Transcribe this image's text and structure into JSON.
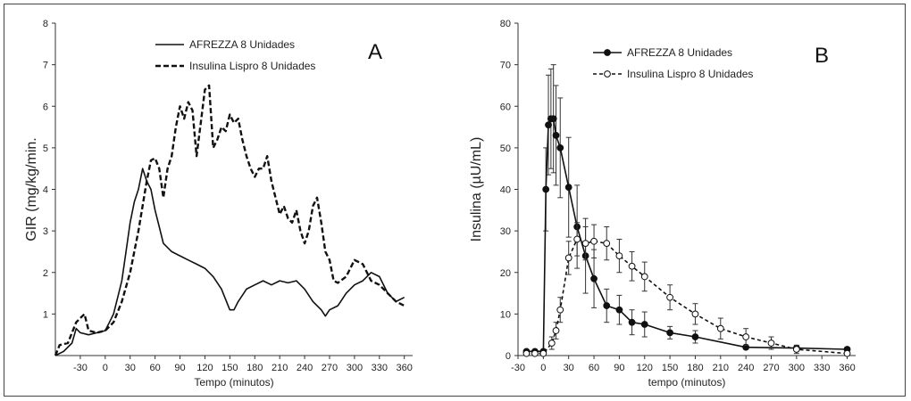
{
  "chart_data": [
    {
      "type": "line",
      "panel_label": "A",
      "xlabel": "Tempo (minutos)",
      "ylabel": "GIR (mg/kg/min.",
      "xlim": [
        -60,
        370
      ],
      "ylim": [
        0,
        8
      ],
      "x_ticks": [
        -30,
        0,
        30,
        60,
        90,
        120,
        150,
        180,
        210,
        240,
        270,
        300,
        330,
        360
      ],
      "y_ticks": [
        1,
        2,
        3,
        4,
        5,
        6,
        7,
        8
      ],
      "legend": "top-right",
      "series": [
        {
          "name": "AFREZZA 8 Unidades",
          "style": "solid",
          "x": [
            -60,
            -50,
            -40,
            -35,
            -30,
            -20,
            -10,
            0,
            5,
            10,
            15,
            20,
            25,
            30,
            35,
            40,
            45,
            50,
            55,
            60,
            65,
            70,
            75,
            80,
            90,
            100,
            110,
            120,
            130,
            140,
            150,
            155,
            160,
            170,
            180,
            190,
            200,
            210,
            220,
            230,
            240,
            250,
            260,
            265,
            270,
            280,
            290,
            300,
            310,
            320,
            330,
            340,
            350,
            360
          ],
          "y": [
            0,
            0.1,
            0.3,
            0.65,
            0.55,
            0.5,
            0.55,
            0.6,
            0.8,
            1.0,
            1.4,
            1.8,
            2.5,
            3.2,
            3.7,
            4.0,
            4.5,
            4.2,
            4.0,
            3.5,
            3.1,
            2.7,
            2.6,
            2.5,
            2.4,
            2.3,
            2.2,
            2.1,
            1.9,
            1.6,
            1.1,
            1.1,
            1.3,
            1.6,
            1.7,
            1.8,
            1.7,
            1.8,
            1.75,
            1.8,
            1.6,
            1.3,
            1.1,
            0.95,
            1.1,
            1.2,
            1.5,
            1.7,
            1.8,
            2.0,
            1.9,
            1.5,
            1.3,
            1.4
          ]
        },
        {
          "name": "Insulina Lispro 8 Unidades",
          "style": "dashed",
          "x": [
            -60,
            -55,
            -45,
            -35,
            -30,
            -25,
            -20,
            -10,
            0,
            10,
            20,
            30,
            40,
            50,
            55,
            60,
            65,
            70,
            75,
            80,
            85,
            90,
            95,
            100,
            105,
            110,
            115,
            120,
            125,
            130,
            135,
            140,
            145,
            150,
            155,
            160,
            165,
            170,
            175,
            180,
            185,
            190,
            195,
            200,
            205,
            210,
            215,
            220,
            225,
            230,
            235,
            240,
            245,
            250,
            255,
            260,
            265,
            270,
            275,
            280,
            290,
            300,
            310,
            320,
            330,
            340,
            350,
            360
          ],
          "y": [
            0,
            0.25,
            0.3,
            0.8,
            0.9,
            1.0,
            0.6,
            0.55,
            0.6,
            0.8,
            1.3,
            2.0,
            3.0,
            4.2,
            4.7,
            4.75,
            4.5,
            3.8,
            4.5,
            4.8,
            5.5,
            6.0,
            5.7,
            6.1,
            5.9,
            4.8,
            5.6,
            6.4,
            6.5,
            5.0,
            5.2,
            5.5,
            5.4,
            5.8,
            5.6,
            5.7,
            5.2,
            4.8,
            4.5,
            4.3,
            4.5,
            4.5,
            4.8,
            4.2,
            3.8,
            3.4,
            3.6,
            3.3,
            3.2,
            3.5,
            3.0,
            2.7,
            3.0,
            3.6,
            3.8,
            3.2,
            2.5,
            2.3,
            1.8,
            1.75,
            1.9,
            2.3,
            2.2,
            1.8,
            1.7,
            1.5,
            1.3,
            1.2
          ]
        }
      ]
    },
    {
      "type": "line",
      "panel_label": "B",
      "xlabel": "tempo (minutos)",
      "ylabel": "Insulina (µU/mL)",
      "xlim": [
        -30,
        370
      ],
      "ylim": [
        0,
        80
      ],
      "x_ticks": [
        -30,
        0,
        30,
        60,
        90,
        120,
        150,
        180,
        210,
        240,
        270,
        300,
        330,
        360
      ],
      "y_ticks": [
        0,
        10,
        20,
        30,
        40,
        50,
        60,
        70,
        80
      ],
      "legend": "top-right",
      "series": [
        {
          "name": "AFREZZA 8 Unidades",
          "marker": "filled-circle",
          "style": "solid",
          "x": [
            -20,
            -10,
            0,
            3,
            6,
            9,
            12,
            15,
            20,
            30,
            40,
            50,
            60,
            75,
            90,
            105,
            120,
            150,
            180,
            240,
            300,
            360
          ],
          "y": [
            1,
            1,
            1,
            40,
            55.5,
            57,
            57,
            53,
            50,
            40.5,
            31,
            24,
            18.5,
            12,
            11,
            8,
            7.5,
            5.5,
            4.5,
            2,
            1.8,
            1.5
          ],
          "err": [
            0,
            0,
            0,
            10,
            12,
            12,
            13,
            12,
            12,
            12,
            10,
            9,
            7,
            4,
            3.5,
            3,
            3,
            1.5,
            1.5,
            0.5,
            0.5,
            0.5
          ]
        },
        {
          "name": "Insulina Lispro 8 Unidades",
          "marker": "open-circle",
          "style": "dashed",
          "x": [
            -20,
            -10,
            0,
            10,
            15,
            20,
            30,
            40,
            50,
            60,
            75,
            90,
            105,
            120,
            150,
            180,
            210,
            240,
            270,
            300,
            360
          ],
          "y": [
            0.5,
            0.5,
            0.5,
            3,
            6,
            11,
            23.5,
            28,
            27,
            27.5,
            27,
            24,
            21.5,
            19,
            14,
            10,
            6.5,
            4.5,
            3,
            1.5,
            0.5
          ],
          "err": [
            0,
            0,
            0,
            1.5,
            2,
            3,
            4,
            4,
            4,
            4,
            4,
            4,
            3.5,
            3.5,
            3,
            2.5,
            2.5,
            2,
            1.5,
            1,
            0.3
          ]
        }
      ]
    }
  ]
}
